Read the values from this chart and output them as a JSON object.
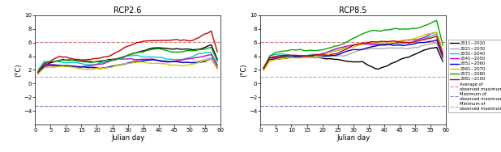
{
  "title_left": "RCP2.6",
  "title_right": "RCP8.5",
  "xlabel": "Julian day",
  "ylabel": "(°C)",
  "xlim": [
    0,
    60
  ],
  "ylim": [
    -6,
    10
  ],
  "yticks": [
    -4,
    -2,
    0,
    2,
    4,
    6,
    8,
    10
  ],
  "xticks": [
    0,
    5,
    10,
    15,
    20,
    25,
    30,
    35,
    40,
    45,
    50,
    55,
    60
  ],
  "hlines": {
    "avg": {
      "y": 6.1,
      "color": "#d08080",
      "ls": "--",
      "lw": 0.8
    },
    "maxobs": {
      "y": -3.3,
      "color": "#8080c0",
      "ls": "--",
      "lw": 0.8
    },
    "minobs": {
      "y": 1.0,
      "color": "#b0b0b0",
      "ls": "--",
      "lw": 0.8
    }
  },
  "scenarios": [
    {
      "label": "2011~2020",
      "color": "#000000",
      "lw": 1.0
    },
    {
      "label": "2021~2030",
      "color": "#aaaaaa",
      "lw": 1.0
    },
    {
      "label": "2031~2040",
      "color": "#00cccc",
      "lw": 1.0
    },
    {
      "label": "2041~2050",
      "color": "#cc00cc",
      "lw": 1.0
    },
    {
      "label": "2051~2060",
      "color": "#0000cc",
      "lw": 1.0
    },
    {
      "label": "2061~2070",
      "color": "#cccc00",
      "lw": 1.0
    },
    {
      "label": "2071~2080",
      "color": "#00aa00",
      "lw": 1.0
    },
    {
      "label": "2081~2100",
      "color": "#cc0000",
      "lw": 1.0
    }
  ],
  "legend_extra": [
    {
      "label": "Average of\nobserved maximum temp.",
      "color": "#d08080",
      "ls": "--",
      "lw": 0.8
    },
    {
      "label": "Maximum of\nobserved maximum temp.",
      "color": "#8080c0",
      "ls": "--",
      "lw": 0.8
    },
    {
      "label": "Minimum of\nobserved maximum temp.",
      "color": "#b0b0b0",
      "ls": "--",
      "lw": 0.8
    }
  ],
  "title_fontsize": 7,
  "tick_fontsize": 5,
  "label_fontsize": 6,
  "legend_fontsize": 3.8
}
